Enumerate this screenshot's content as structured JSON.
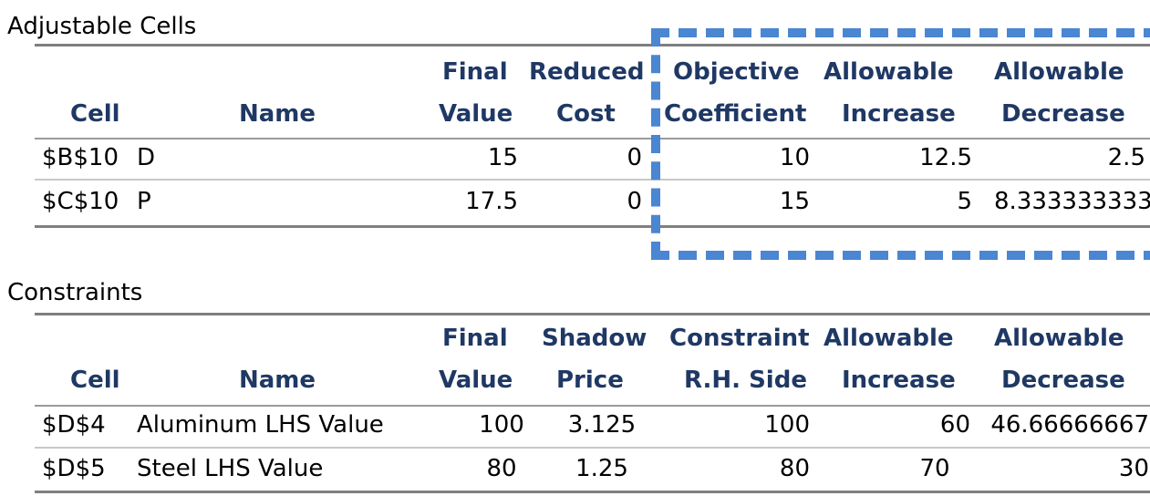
{
  "adjustable": {
    "title": "Adjustable Cells",
    "headers": {
      "cell": "Cell",
      "name": "Name",
      "final_1": "Final",
      "final_2": "Value",
      "reduced_1": "Reduced",
      "reduced_2": "Cost",
      "objective_1": "Objective",
      "objective_2": "Coefficient",
      "allow_inc_1": "Allowable",
      "allow_inc_2": "Increase",
      "allow_dec_1": "Allowable",
      "allow_dec_2": "Decrease"
    },
    "rows": [
      {
        "cell": "$B$10",
        "name": "D",
        "final": "15",
        "reduced": "0",
        "objective": "10",
        "inc": "12.5",
        "dec": "2.5"
      },
      {
        "cell": "$C$10",
        "name": "P",
        "final": "17.5",
        "reduced": "0",
        "objective": "15",
        "inc": "5",
        "dec": "8.333333333"
      }
    ]
  },
  "constraints": {
    "title": "Constraints",
    "headers": {
      "cell": "Cell",
      "name": "Name",
      "final_1": "Final",
      "final_2": "Value",
      "shadow_1": "Shadow",
      "shadow_2": "Price",
      "rhs_1": "Constraint",
      "rhs_2": "R.H. Side",
      "allow_inc_1": "Allowable",
      "allow_inc_2": "Increase",
      "allow_dec_1": "Allowable",
      "allow_dec_2": "Decrease"
    },
    "rows": [
      {
        "cell": "$D$4",
        "name": "Aluminum LHS Value",
        "final": "100",
        "shadow": "3.125",
        "rhs": "100",
        "inc": "60",
        "dec": "46.66666667"
      },
      {
        "cell": "$D$5",
        "name": "Steel LHS Value",
        "final": "80",
        "shadow": "1.25",
        "rhs": "80",
        "inc": "70",
        "dec": "30"
      }
    ]
  },
  "colors": {
    "header_text": "#1f3864",
    "highlight_dash": "#4a86d1",
    "rule": "#7f7f7f"
  }
}
